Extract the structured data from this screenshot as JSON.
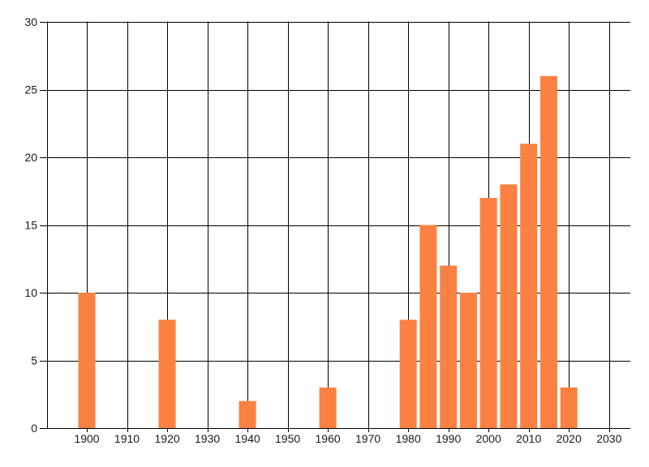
{
  "chart_data": {
    "type": "bar",
    "title": "",
    "xlabel": "",
    "ylabel": "",
    "x": [
      1900,
      1920,
      1940,
      1960,
      1980,
      1985,
      1990,
      1995,
      2000,
      2005,
      2010,
      2015,
      2020
    ],
    "values": [
      10,
      8,
      2,
      3,
      8,
      15,
      12,
      10,
      17,
      18,
      21,
      26,
      3
    ],
    "x_tick_labels": [
      "1900",
      "1910",
      "1920",
      "1930",
      "1940",
      "1950",
      "1960",
      "1970",
      "1980",
      "1990",
      "2000",
      "2010",
      "2020",
      "2030"
    ],
    "x_tick_years": [
      1900,
      1910,
      1920,
      1930,
      1940,
      1950,
      1960,
      1970,
      1980,
      1990,
      2000,
      2010,
      2020,
      2030
    ],
    "y_tick_labels": [
      "0",
      "5",
      "10",
      "15",
      "20",
      "25",
      "30"
    ],
    "y_tick_values": [
      0,
      5,
      10,
      15,
      20,
      25,
      30
    ],
    "xlim": [
      1890.1,
      2035.3
    ],
    "ylim": [
      0,
      30
    ],
    "grid": true,
    "legend": "none",
    "bar_color": "#FB8143",
    "grid_color": "#000000",
    "axis_color": "#000000",
    "label_color": "#1A1A1A",
    "background_color": "#FFFFFF"
  }
}
